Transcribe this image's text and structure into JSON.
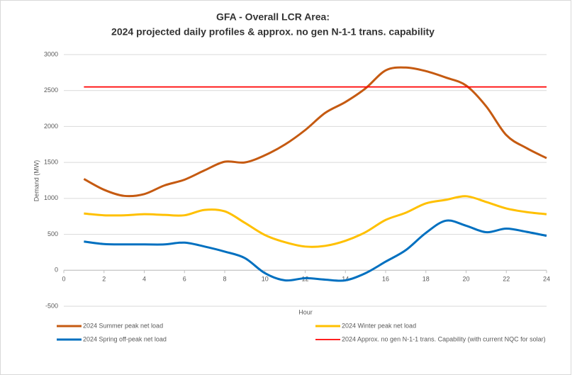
{
  "chart_data": {
    "type": "line",
    "title": "GFA - Overall LCR Area:",
    "subtitle": "2024 projected daily profiles & approx. no  gen N-1-1 trans. capability",
    "x_label": "Hour",
    "y_label": "Demand (MW)",
    "x": [
      1,
      2,
      3,
      4,
      5,
      6,
      7,
      8,
      9,
      10,
      11,
      12,
      13,
      14,
      15,
      16,
      17,
      18,
      19,
      20,
      21,
      22,
      23,
      24
    ],
    "series": [
      {
        "name": "2024 Summer peak net load",
        "color": "#c55a11",
        "values": [
          1270,
          1120,
          1035,
          1060,
          1180,
          1260,
          1390,
          1510,
          1500,
          1600,
          1750,
          1950,
          2190,
          2340,
          2530,
          2780,
          2820,
          2770,
          2680,
          2570,
          2280,
          1880,
          1700,
          1560
        ]
      },
      {
        "name": "2024 Winter peak net load",
        "color": "#ffc000",
        "values": [
          790,
          765,
          765,
          780,
          770,
          765,
          840,
          820,
          660,
          490,
          390,
          330,
          340,
          410,
          530,
          700,
          800,
          930,
          980,
          1030,
          950,
          860,
          810,
          780
        ]
      },
      {
        "name": "2024 Spring off-peak net load",
        "color": "#0070c0",
        "values": [
          400,
          365,
          360,
          360,
          360,
          385,
          330,
          260,
          170,
          -40,
          -140,
          -110,
          -130,
          -140,
          -40,
          120,
          280,
          520,
          690,
          620,
          530,
          580,
          535,
          480
        ]
      },
      {
        "name": "2024 Approx. no gen N-1-1 trans. Capability (with current NQC for solar)",
        "color": "#ff0000",
        "values": [
          2550,
          2550,
          2550,
          2550,
          2550,
          2550,
          2550,
          2550,
          2550,
          2550,
          2550,
          2550,
          2550,
          2550,
          2550,
          2550,
          2550,
          2550,
          2550,
          2550,
          2550,
          2550,
          2550,
          2550
        ]
      }
    ],
    "xlim": [
      0,
      24
    ],
    "xticks": [
      0,
      2,
      4,
      6,
      8,
      10,
      12,
      14,
      16,
      18,
      20,
      22,
      24
    ],
    "ylim": [
      -500,
      3000
    ],
    "yticks": [
      -500,
      0,
      500,
      1000,
      1500,
      2000,
      2500,
      3000
    ],
    "grid": true,
    "legend": "bottom",
    "smooth": true
  }
}
